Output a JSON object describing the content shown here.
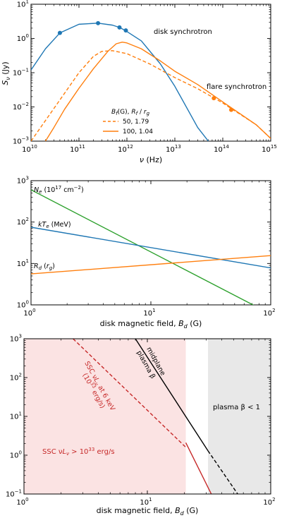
{
  "chart_data": [
    {
      "type": "line",
      "xlabel": "ν (Hz)",
      "ylabel": "S_ν (Jy)",
      "xscale": "log",
      "yscale": "log",
      "xlim": [
        10000000000.0,
        1000000000000000.0
      ],
      "ylim": [
        0.001,
        10
      ],
      "x_ticks": [
        10000000000.0,
        100000000000.0,
        1000000000000.0,
        10000000000000.0,
        100000000000000.0,
        1000000000000000.0
      ],
      "x_tick_labels": [
        {
          "base": "10",
          "exp": "10"
        },
        {
          "base": "10",
          "exp": "11"
        },
        {
          "base": "10",
          "exp": "12"
        },
        {
          "base": "10",
          "exp": "13"
        },
        {
          "base": "10",
          "exp": "14"
        },
        {
          "base": "10",
          "exp": "15"
        }
      ],
      "y_ticks": [
        0.001,
        0.01,
        0.1,
        1,
        10
      ],
      "y_tick_labels": [
        {
          "base": "10",
          "exp": "−3"
        },
        {
          "base": "10",
          "exp": "−2"
        },
        {
          "base": "10",
          "exp": "−1"
        },
        {
          "base": "10",
          "exp": "0"
        },
        {
          "base": "10",
          "exp": "1"
        }
      ],
      "series": [
        {
          "label": "disk synchrotron",
          "color": "#1f77b4",
          "style": "solid",
          "x": [
            10000000000.0,
            20000000000.0,
            40000000000.0,
            100000000000.0,
            250000000000.0,
            500000000000.0,
            700000000000.0,
            900000000000.0,
            2000000000000.0,
            5000000000000.0,
            10000000000000.0,
            30000000000000.0,
            50000000000000.0
          ],
          "y": [
            0.12,
            0.5,
            1.45,
            2.6,
            2.8,
            2.45,
            2.1,
            1.75,
            0.85,
            0.18,
            0.04,
            0.0025,
            0.001
          ]
        },
        {
          "label": "100, 1.04",
          "color": "#ff7f0e",
          "style": "solid",
          "x": [
            20000000000.0,
            30000000000.0,
            50000000000.0,
            100000000000.0,
            200000000000.0,
            400000000000.0,
            600000000000.0,
            800000000000.0,
            1000000000000.0,
            2000000000000.0,
            5000000000000.0,
            10000000000000.0,
            30000000000000.0,
            100000000000000.0,
            500000000000000.0,
            1000000000000000.0
          ],
          "y": [
            0.001,
            0.0025,
            0.0085,
            0.035,
            0.13,
            0.42,
            0.7,
            0.78,
            0.74,
            0.5,
            0.22,
            0.11,
            0.045,
            0.014,
            0.003,
            0.0012
          ]
        },
        {
          "label": "50, 1.79",
          "color": "#ff7f0e",
          "style": "dashed",
          "x": [
            10000000000.0,
            20000000000.0,
            50000000000.0,
            100000000000.0,
            200000000000.0,
            300000000000.0,
            500000000000.0,
            1000000000000.0,
            3000000000000.0,
            10000000000000.0,
            30000000000000.0,
            100000000000000.0,
            500000000000000.0,
            1000000000000000.0
          ],
          "y": [
            0.001,
            0.004,
            0.025,
            0.1,
            0.3,
            0.42,
            0.44,
            0.36,
            0.18,
            0.072,
            0.034,
            0.013,
            0.003,
            0.0012
          ]
        }
      ],
      "markers": [
        {
          "x": 40000000000.0,
          "y": 1.45,
          "color": "#1f77b4"
        },
        {
          "x": 250000000000.0,
          "y": 2.8,
          "color": "#1f77b4"
        },
        {
          "x": 700000000000.0,
          "y": 2.1,
          "color": "#1f77b4"
        },
        {
          "x": 950000000000.0,
          "y": 1.72,
          "color": "#1f77b4"
        },
        {
          "x": 65000000000000.0,
          "y": 0.018,
          "color": "#ff7f0e"
        },
        {
          "x": 150000000000000.0,
          "y": 0.0082,
          "color": "#ff7f0e"
        }
      ],
      "annotations": [
        {
          "text": "disk synchrotron",
          "x": 1200000000000.0,
          "y": 1.4
        },
        {
          "text": "flare synchrotron",
          "x": 40000000000000.0,
          "y": 0.055
        }
      ],
      "legend": {
        "title": "B_f(G), R_f / r_g",
        "placement": "lower-center",
        "entries": [
          {
            "label": "50, 1.79",
            "style": "dashed",
            "color": "#ff7f0e"
          },
          {
            "label": "100, 1.04",
            "style": "solid",
            "color": "#ff7f0e"
          }
        ]
      }
    },
    {
      "type": "line",
      "xlabel": "disk magnetic field, B_d (G)",
      "xscale": "log",
      "yscale": "log",
      "xlim": [
        1,
        100
      ],
      "ylim": [
        1,
        1000
      ],
      "x_ticks": [
        1,
        10,
        100
      ],
      "x_tick_labels": [
        {
          "base": "10",
          "exp": "0"
        },
        {
          "base": "10",
          "exp": "1"
        },
        {
          "base": "10",
          "exp": "2"
        }
      ],
      "y_ticks": [
        1,
        10,
        100,
        1000
      ],
      "y_tick_labels": [
        {
          "base": "10",
          "exp": "0"
        },
        {
          "base": "10",
          "exp": "1"
        },
        {
          "base": "10",
          "exp": "2"
        },
        {
          "base": "10",
          "exp": "3"
        }
      ],
      "series": [
        {
          "label": "N_e (10^17 cm^−2)",
          "color": "#2ca02c",
          "x": [
            1,
            100
          ],
          "y": [
            600,
            0.6
          ]
        },
        {
          "label": "kT_e (MeV)",
          "color": "#1f77b4",
          "x": [
            1,
            100
          ],
          "y": [
            75,
            7.8
          ]
        },
        {
          "label": "R_d (r_g)",
          "color": "#ff7f0e",
          "x": [
            1,
            100
          ],
          "y": [
            5.6,
            15.5
          ]
        }
      ],
      "labels": [
        {
          "key": "Ne",
          "main": "N",
          "sub": "e",
          "rest": " (10",
          "sup": "17",
          "tail": " cm",
          "sup2": "−2",
          "end": ")"
        },
        {
          "key": "kTe",
          "main": "kT",
          "sub": "e",
          "rest": " (MeV)"
        },
        {
          "key": "Rd",
          "main": "R",
          "sub": "d",
          "rest": " (r",
          "sub2": "g",
          "end": ")"
        }
      ]
    },
    {
      "type": "line",
      "xlabel": "disk magnetic field, B_d (G)",
      "xscale": "log",
      "yscale": "log",
      "xlim": [
        1,
        100
      ],
      "ylim": [
        0.1,
        1000
      ],
      "x_ticks": [
        1,
        10,
        100
      ],
      "x_tick_labels": [
        {
          "base": "10",
          "exp": "0"
        },
        {
          "base": "10",
          "exp": "1"
        },
        {
          "base": "10",
          "exp": "2"
        }
      ],
      "y_ticks": [
        0.1,
        1,
        10,
        100,
        1000
      ],
      "y_tick_labels": [
        {
          "base": "10",
          "exp": "−1"
        },
        {
          "base": "10",
          "exp": "0"
        },
        {
          "base": "10",
          "exp": "1"
        },
        {
          "base": "10",
          "exp": "2"
        },
        {
          "base": "10",
          "exp": "3"
        }
      ],
      "regions": [
        {
          "name": "ssc-region",
          "x": [
            1,
            20.5
          ],
          "color": "#fbe3e3"
        },
        {
          "name": "low-beta-region",
          "x": [
            31,
            100
          ],
          "color": "#e8e8e8"
        }
      ],
      "series": [
        {
          "name": "ssc-dashed",
          "color": "#c62828",
          "style": "dashed",
          "x": [
            2.5,
            20.5
          ],
          "y": [
            1000,
            1.6
          ]
        },
        {
          "name": "ssc-solid",
          "color": "#c62828",
          "style": "solid",
          "x": [
            20.5,
            33
          ],
          "y": [
            2.1,
            0.1
          ]
        },
        {
          "name": "beta-solid",
          "color": "#000000",
          "style": "solid",
          "x": [
            8,
            31
          ],
          "y": [
            1000,
            1.3
          ]
        },
        {
          "name": "beta-dashed",
          "color": "#000000",
          "style": "dashed",
          "x": [
            31,
            54
          ],
          "y": [
            1.3,
            0.1
          ]
        }
      ],
      "annotations": {
        "ssc_6kev": [
          "SSC νL",
          "ν",
          " at 6 keV",
          "(10",
          "33",
          " erg/s)"
        ],
        "ssc_bound": [
          "SSC νL",
          "ν",
          " > 10",
          "33",
          " erg/s"
        ],
        "midplane": [
          "midplane",
          "plasma β"
        ],
        "low_beta": "plasma β < 1"
      }
    }
  ]
}
